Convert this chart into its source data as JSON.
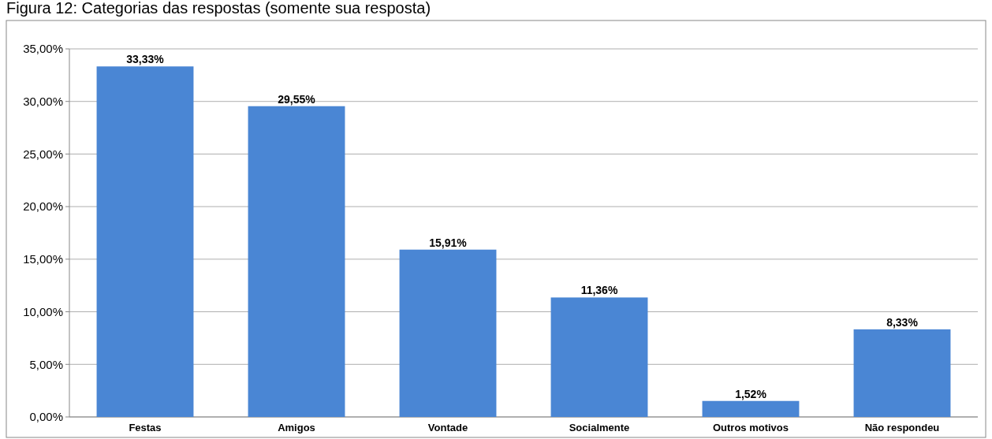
{
  "chart_data": {
    "type": "bar",
    "title": "Figura 12: Categorias das respostas (somente sua resposta)",
    "categories": [
      "Festas",
      "Amigos",
      "Vontade",
      "Socialmente",
      "Outros motivos",
      "Não respondeu"
    ],
    "values": [
      33.33,
      29.55,
      15.91,
      11.36,
      1.52,
      8.33
    ],
    "value_labels": [
      "33,33%",
      "29,55%",
      "15,91%",
      "11,36%",
      "1,52%",
      "8,33%"
    ],
    "color": "#4a86d4",
    "ylim": [
      0,
      35
    ],
    "yticks": [
      {
        "value": 0,
        "label": "0,00%"
      },
      {
        "value": 5,
        "label": "5,00%"
      },
      {
        "value": 10,
        "label": "10,00%"
      },
      {
        "value": 15,
        "label": "15,00%"
      },
      {
        "value": 20,
        "label": "20,00%"
      },
      {
        "value": 25,
        "label": "25,00%"
      },
      {
        "value": 30,
        "label": "30,00%"
      },
      {
        "value": 35,
        "label": "35,00%"
      }
    ],
    "grid": "y"
  }
}
